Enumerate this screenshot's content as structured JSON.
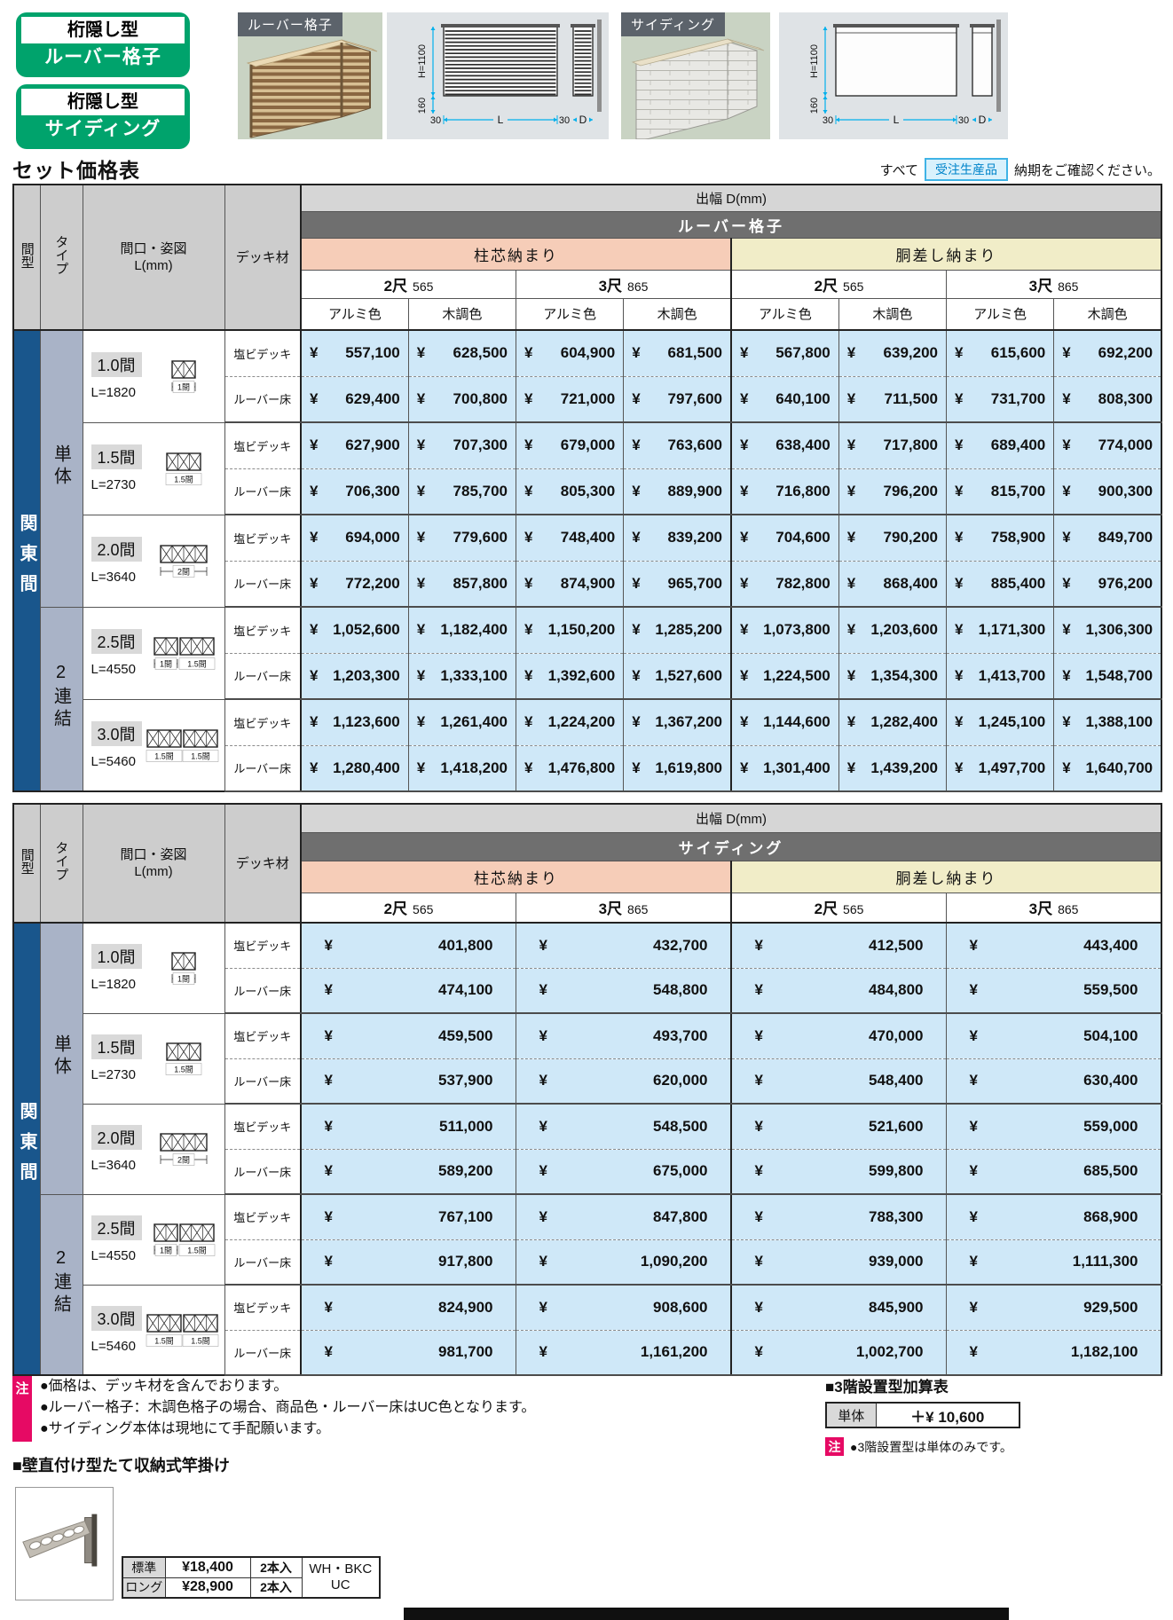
{
  "header": {
    "badges": [
      {
        "type_label": "桁隠し型",
        "product_label": "ルーバー格子"
      },
      {
        "type_label": "桁隠し型",
        "product_label": "サイディング"
      }
    ],
    "photos": [
      {
        "label": "ルーバー格子"
      },
      {
        "label": "サイディング"
      }
    ],
    "diagrams": {
      "height_label": "H=1100",
      "base_label": "160",
      "offset_label": "30",
      "length_label": "L",
      "depth_label": "D"
    }
  },
  "title_row": {
    "title": "セット価格表",
    "right_prefix": "すべて",
    "right_badge": "受注生産品",
    "right_suffix": "納期をご確認ください。"
  },
  "table_common": {
    "col_matagata": "間型",
    "col_type": "タイプ",
    "col_span_line1": "間口・姿図",
    "col_span_line2": "L(mm)",
    "col_deck": "デッキ材",
    "col_width": "出幅 D(mm)",
    "group_post": "柱芯納まり",
    "group_beam": "胴差し納まり",
    "sizes": [
      {
        "shaku": "2尺",
        "mm": "565"
      },
      {
        "shaku": "3尺",
        "mm": "865"
      },
      {
        "shaku": "2尺",
        "mm": "565"
      },
      {
        "shaku": "3尺",
        "mm": "865"
      }
    ],
    "colors": [
      "アルミ色",
      "木調色"
    ],
    "region": "関東間",
    "type_groups": [
      {
        "label": "単体",
        "groups": 3
      },
      {
        "label": "2連結",
        "groups": 2
      }
    ],
    "yen": "¥",
    "deck_rows": [
      "塩ビデッキ",
      "ルーバー床"
    ],
    "row_groups": [
      {
        "span": "1.0間",
        "length": "L=1820",
        "panels": [
          1
        ],
        "panel_labels": [
          "1間"
        ]
      },
      {
        "span": "1.5間",
        "length": "L=2730",
        "panels": [
          1.5
        ],
        "panel_labels": [
          "1.5間"
        ]
      },
      {
        "span": "2.0間",
        "length": "L=3640",
        "panels": [
          2
        ],
        "panel_labels": [
          "2間"
        ]
      },
      {
        "span": "2.5間",
        "length": "L=4550",
        "panels": [
          1,
          1.5
        ],
        "panel_labels": [
          "1間",
          "1.5間"
        ]
      },
      {
        "span": "3.0間",
        "length": "L=5460",
        "panels": [
          1.5,
          1.5
        ],
        "panel_labels": [
          "1.5間",
          "1.5間"
        ]
      }
    ]
  },
  "tables": [
    {
      "product": "ルーバー格子",
      "has_colors": true,
      "prices": [
        [
          [
            "557,100",
            "628,500",
            "604,900",
            "681,500",
            "567,800",
            "639,200",
            "615,600",
            "692,200"
          ],
          [
            "629,400",
            "700,800",
            "721,000",
            "797,600",
            "640,100",
            "711,500",
            "731,700",
            "808,300"
          ]
        ],
        [
          [
            "627,900",
            "707,300",
            "679,000",
            "763,600",
            "638,400",
            "717,800",
            "689,400",
            "774,000"
          ],
          [
            "706,300",
            "785,700",
            "805,300",
            "889,900",
            "716,800",
            "796,200",
            "815,700",
            "900,300"
          ]
        ],
        [
          [
            "694,000",
            "779,600",
            "748,400",
            "839,200",
            "704,600",
            "790,200",
            "758,900",
            "849,700"
          ],
          [
            "772,200",
            "857,800",
            "874,900",
            "965,700",
            "782,800",
            "868,400",
            "885,400",
            "976,200"
          ]
        ],
        [
          [
            "1,052,600",
            "1,182,400",
            "1,150,200",
            "1,285,200",
            "1,073,800",
            "1,203,600",
            "1,171,300",
            "1,306,300"
          ],
          [
            "1,203,300",
            "1,333,100",
            "1,392,600",
            "1,527,600",
            "1,224,500",
            "1,354,300",
            "1,413,700",
            "1,548,700"
          ]
        ],
        [
          [
            "1,123,600",
            "1,261,400",
            "1,224,200",
            "1,367,200",
            "1,144,600",
            "1,282,400",
            "1,245,100",
            "1,388,100"
          ],
          [
            "1,280,400",
            "1,418,200",
            "1,476,800",
            "1,619,800",
            "1,301,400",
            "1,439,200",
            "1,497,700",
            "1,640,700"
          ]
        ]
      ]
    },
    {
      "product": "サイディング",
      "has_colors": false,
      "prices": [
        [
          [
            "401,800",
            "432,700",
            "412,500",
            "443,400"
          ],
          [
            "474,100",
            "548,800",
            "484,800",
            "559,500"
          ]
        ],
        [
          [
            "459,500",
            "493,700",
            "470,000",
            "504,100"
          ],
          [
            "537,900",
            "620,000",
            "548,400",
            "630,400"
          ]
        ],
        [
          [
            "511,000",
            "548,500",
            "521,600",
            "559,000"
          ],
          [
            "589,200",
            "675,000",
            "599,800",
            "685,500"
          ]
        ],
        [
          [
            "767,100",
            "847,800",
            "788,300",
            "868,900"
          ],
          [
            "917,800",
            "1,090,200",
            "939,000",
            "1,111,300"
          ]
        ],
        [
          [
            "824,900",
            "908,600",
            "845,900",
            "929,500"
          ],
          [
            "981,700",
            "1,161,200",
            "1,002,700",
            "1,182,100"
          ]
        ]
      ]
    }
  ],
  "notes": {
    "badge": "注",
    "items": [
      "●価格は、デッキ材を含んでおります。",
      "●ルーバー格子：木調色格子の場合、商品色・ルーバー床はUC色となります。",
      "●サイディング本体は現地にて手配願います。"
    ]
  },
  "addition_table": {
    "title": "■3階設置型加算表",
    "row_label": "単体",
    "row_value": "＋¥ 10,600",
    "note_badge": "注",
    "note": "●3階設置型は単体のみです。"
  },
  "hanger": {
    "title": "■壁直付け型たて収納式竿掛け",
    "rows": [
      {
        "label": "標準",
        "price": "¥18,400",
        "qty": "2本入"
      },
      {
        "label": "ロング",
        "price": "¥28,900",
        "qty": "2本入"
      }
    ],
    "colors_line1": "WH・BKC",
    "colors_line2": "UC"
  }
}
